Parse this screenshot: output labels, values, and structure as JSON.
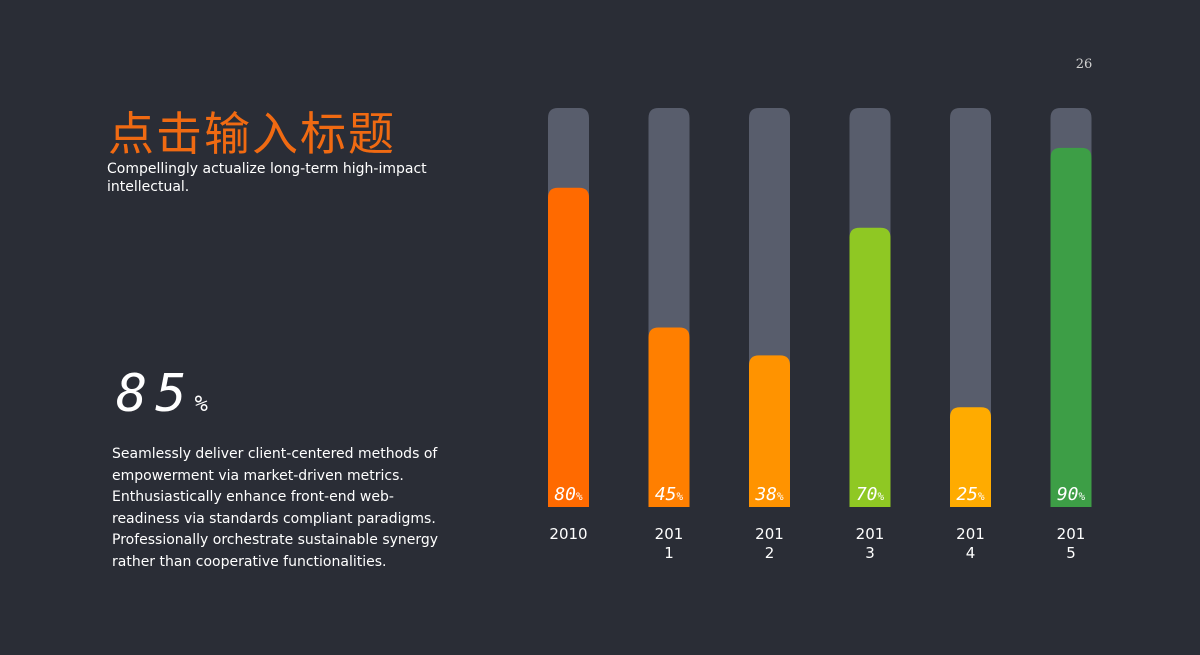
{
  "page": {
    "number": "26"
  },
  "header": {
    "title": "点击输入标题",
    "subtitle": "Compellingly actualize long-term high-impact intellectual."
  },
  "highlight": {
    "value": "85",
    "unit": "%"
  },
  "body_text": "Seamlessly deliver client-centered methods of empowerment via market-driven metrics. Enthusiastically enhance front-end web-readiness via standards compliant paradigms. Professionally orchestrate sustainable synergy rather than cooperative functionalities.",
  "chart_data": {
    "type": "bar",
    "categories": [
      "2010",
      "2011",
      "2012",
      "2013",
      "2014",
      "2015"
    ],
    "category_lines": [
      [
        "2010"
      ],
      [
        "201",
        "1"
      ],
      [
        "201",
        "2"
      ],
      [
        "201",
        "3"
      ],
      [
        "201",
        "4"
      ],
      [
        "201",
        "5"
      ]
    ],
    "values": [
      80,
      45,
      38,
      70,
      25,
      90
    ],
    "labels": [
      "80",
      "45",
      "38",
      "70",
      "25",
      "90"
    ],
    "label_unit": "%",
    "ylim": [
      0,
      100
    ],
    "colors": [
      "#ff6a00",
      "#ff7f00",
      "#ff9300",
      "#8fc823",
      "#ffab00",
      "#3d9e46"
    ],
    "track_color": "#585d6c",
    "grid": false,
    "legend": "none"
  }
}
